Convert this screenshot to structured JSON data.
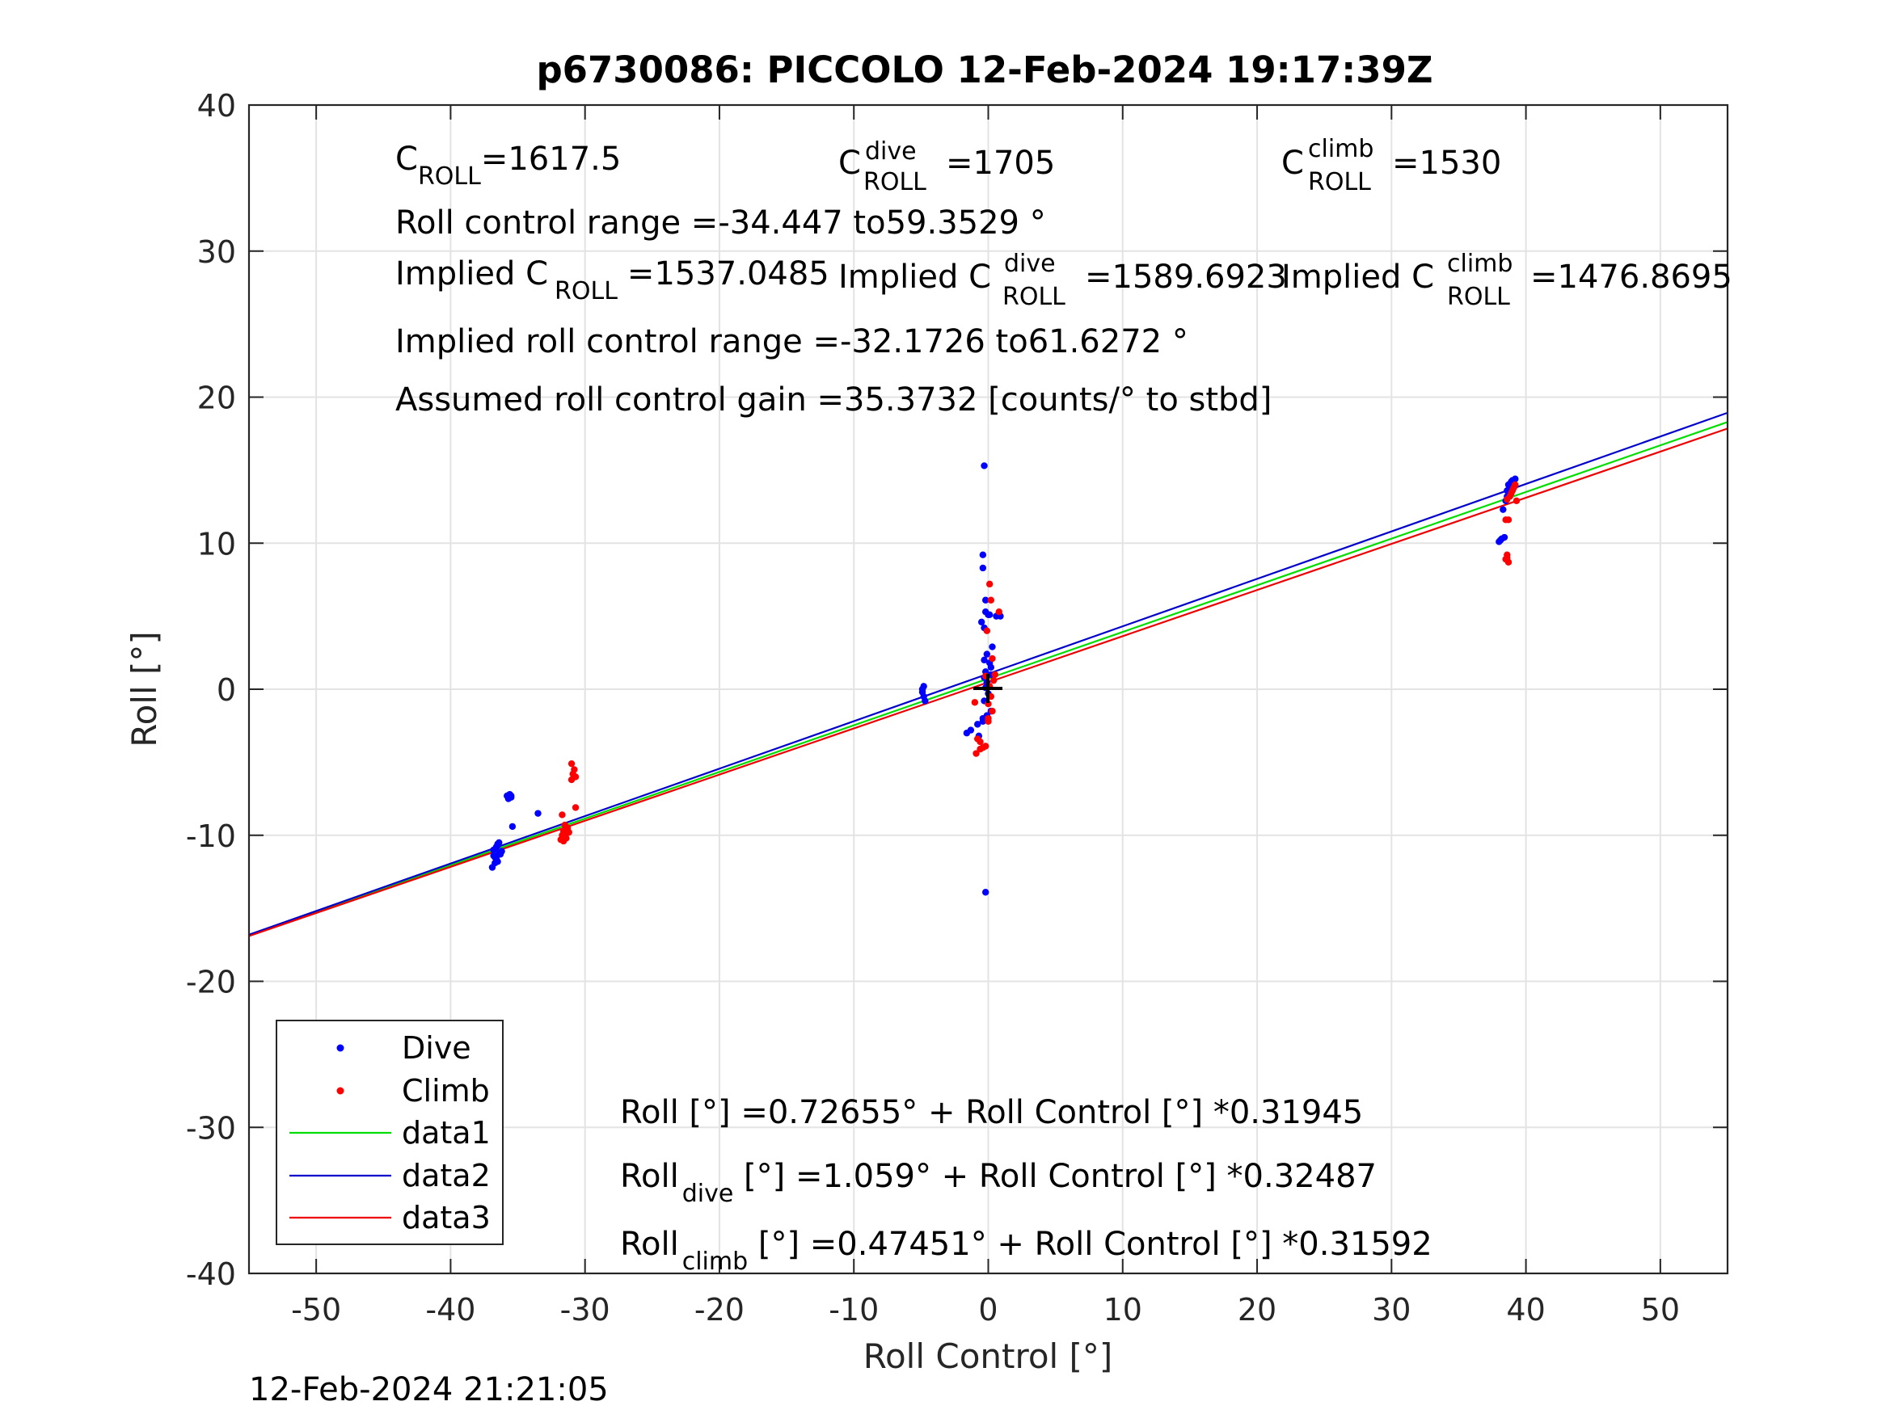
{
  "timestamp": "12-Feb-2024 21:21:05",
  "chart_data": {
    "type": "scatter",
    "title": "p6730086: PICCOLO 12-Feb-2024 19:17:39Z",
    "xlabel": "Roll Control [°]",
    "ylabel": "Roll [°]",
    "xlim": [
      -55,
      55
    ],
    "ylim": [
      -40,
      40
    ],
    "xticks": [
      -50,
      -40,
      -30,
      -20,
      -10,
      0,
      10,
      20,
      30,
      40,
      50
    ],
    "yticks": [
      -40,
      -30,
      -20,
      -10,
      0,
      10,
      20,
      30,
      40
    ],
    "grid": true,
    "legend_position": "bottom-left",
    "legend": [
      "Dive",
      "Climb",
      "data1",
      "data2",
      "data3"
    ],
    "colors": {
      "dive": "#0000ff",
      "climb": "#ff0000",
      "data1": "#00dd00",
      "data2": "#0000cc",
      "data3": "#ee0000"
    },
    "annotations": {
      "c_roll": {
        "base": "C",
        "sub": "ROLL",
        "value": "=1617.5"
      },
      "c_roll_dive": {
        "base": "C",
        "sup": "dive",
        "sub": "ROLL",
        "value": "=1705"
      },
      "c_roll_climb": {
        "base": "C",
        "sup": "climb",
        "sub": "ROLL",
        "value": "=1530"
      },
      "roll_range": "Roll control range =-34.447 to59.3529 °",
      "implied_c_roll": {
        "base": "Implied C",
        "sub": "ROLL",
        "value": "=1537.0485"
      },
      "implied_c_roll_dive": {
        "base": "Implied C",
        "sup": "dive",
        "sub": "ROLL",
        "value": "=1589.6923"
      },
      "implied_c_roll_climb": {
        "base": "Implied C",
        "sup": "climb",
        "sub": "ROLL",
        "value": "=1476.8695"
      },
      "implied_range": "Implied roll control range =-32.1726 to61.6272 °",
      "gain": "Assumed roll control gain =35.3732 [counts/° to stbd]",
      "fit_all": "Roll [°] =0.72655° + Roll Control [°] *0.31945",
      "fit_dive": {
        "base": "Roll",
        "sub": "dive",
        "rest": " [°] =1.059° + Roll Control [°] *0.32487"
      },
      "fit_climb": {
        "base": "Roll",
        "sub": "climb",
        "rest": " [°] =0.47451° + Roll Control [°] *0.31592"
      }
    },
    "series": [
      {
        "name": "data1",
        "kind": "line",
        "x": [
          -55,
          55
        ],
        "y": [
          -16.843,
          18.297
        ]
      },
      {
        "name": "data2",
        "kind": "line",
        "x": [
          -55,
          55
        ],
        "y": [
          -16.809,
          18.927
        ]
      },
      {
        "name": "data3",
        "kind": "line",
        "x": [
          -55,
          55
        ],
        "y": [
          -16.901,
          17.85
        ]
      },
      {
        "name": "Dive",
        "kind": "points",
        "x": [
          -36.8,
          -36.6,
          -36.5,
          -36.4,
          -36.7,
          -36.3,
          -36.9,
          -36.5,
          -36.2,
          -36.6,
          -36.4,
          -36.8,
          -35.8,
          -35.6,
          -35.5,
          -35.7,
          -35.4,
          -33.5,
          -35.5,
          -36.7,
          -36.5,
          -4.8,
          -4.9,
          -4.8,
          -4.7,
          -4.9,
          -0.3,
          -0.4,
          -0.4,
          -0.2,
          -0.5,
          -0.3,
          -0.2,
          0.0,
          0.1,
          0.9,
          0.6,
          0.3,
          -0.1,
          -0.3,
          0.2,
          -0.2,
          -0.3,
          0.1,
          -0.1,
          -0.2,
          0.2,
          -0.3,
          -0.4,
          -1.3,
          -1.6,
          -0.7,
          -0.8,
          -0.4,
          -0.1,
          0.2,
          -0.2,
          -0.1,
          0.0,
          38.1,
          38.2,
          38.4,
          38.6,
          38.7,
          38.9,
          39.0,
          39.2,
          38.8,
          39.1,
          38.3,
          38.5,
          38.6,
          38.9,
          38.0
        ],
        "y": [
          -11.0,
          -10.8,
          -10.6,
          -10.5,
          -11.5,
          -11.3,
          -12.2,
          -11.8,
          -11.1,
          -11.6,
          -11.2,
          -11.4,
          -7.3,
          -7.2,
          -7.4,
          -7.5,
          -9.4,
          -8.5,
          -7.3,
          -11.9,
          -10.7,
          0.2,
          -0.2,
          -0.5,
          -0.8,
          0.0,
          15.3,
          9.2,
          8.3,
          6.1,
          4.6,
          4.2,
          5.3,
          5.1,
          5.1,
          5.0,
          5.0,
          2.9,
          2.4,
          2.0,
          1.5,
          1.2,
          0.8,
          1.8,
          0.5,
          0.1,
          1.0,
          -0.8,
          -2.0,
          -2.8,
          -3.0,
          -3.2,
          -2.4,
          -2.2,
          -1.8,
          -1.5,
          -13.9,
          0.4,
          -0.3,
          10.2,
          10.3,
          10.4,
          13.6,
          14.0,
          14.2,
          14.3,
          14.4,
          13.9,
          14.1,
          12.3,
          12.9,
          13.2,
          13.5,
          10.1
        ]
      },
      {
        "name": "Climb",
        "kind": "points",
        "x": [
          -31.5,
          -31.6,
          -31.7,
          -31.4,
          -31.6,
          -31.5,
          -31.3,
          -31.7,
          -31.2,
          -31.5,
          -31.4,
          -31.8,
          -31.0,
          -30.8,
          -30.9,
          -30.7,
          -31.0,
          -30.7,
          -1.0,
          -0.8,
          -0.6,
          -0.4,
          -0.2,
          0.0,
          0.3,
          0.5,
          0.8,
          -0.9,
          -0.6,
          0.1,
          0.2,
          -0.1,
          0.0,
          0.4,
          -0.2,
          0.1,
          0.2,
          0.3,
          0.0,
          38.6,
          38.8,
          38.9,
          39.0,
          39.1,
          39.2,
          39.3,
          38.7,
          38.5,
          38.6,
          38.7,
          38.5,
          38.6
        ],
        "y": [
          -9.3,
          -9.7,
          -10.0,
          -10.2,
          -10.4,
          -9.9,
          -9.5,
          -8.6,
          -9.8,
          -10.1,
          -9.6,
          -10.3,
          -5.1,
          -5.5,
          -5.8,
          -6.0,
          -6.2,
          -8.1,
          -0.9,
          -3.4,
          -3.6,
          -4.0,
          -3.9,
          -2.0,
          2.1,
          1.0,
          5.3,
          -4.4,
          -4.1,
          7.2,
          6.1,
          4.0,
          -1.0,
          0.6,
          0.9,
          0.2,
          -0.5,
          -1.5,
          -2.2,
          13.0,
          13.2,
          13.4,
          13.6,
          13.8,
          14.0,
          12.9,
          11.6,
          11.6,
          9.2,
          8.7,
          8.9,
          9.0
        ]
      }
    ]
  }
}
